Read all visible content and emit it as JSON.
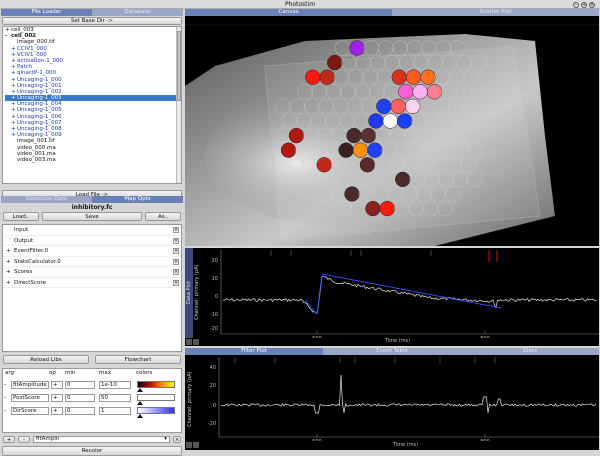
{
  "window": {
    "title": "Photostim"
  },
  "left": {
    "tabs": [
      "File Loader",
      "Database"
    ],
    "set_base_dir": "Set Base Dir ->",
    "tree": [
      {
        "label": "cell_003",
        "indent": 0,
        "prefix": "+"
      },
      {
        "label": "cell_002",
        "indent": 0,
        "prefix": "-",
        "bold": true
      },
      {
        "label": "image_000.tif",
        "indent": 1,
        "prefix": ""
      },
      {
        "label": "CCIV1_000",
        "indent": 1,
        "prefix": "+",
        "blue": true
      },
      {
        "label": "VCIV1_000",
        "indent": 1,
        "prefix": "+",
        "blue": true
      },
      {
        "label": "activation-1_000",
        "indent": 1,
        "prefix": "+",
        "blue": true
      },
      {
        "label": "Patch",
        "indent": 1,
        "prefix": "+",
        "blue": true
      },
      {
        "label": "qinactP-1_000",
        "indent": 1,
        "prefix": "+",
        "blue": true
      },
      {
        "label": "Uncaging-1_000",
        "indent": 1,
        "prefix": "+",
        "blue": true
      },
      {
        "label": "Uncaging-1_001",
        "indent": 1,
        "prefix": "+",
        "blue": true
      },
      {
        "label": "Uncaging-1_002",
        "indent": 1,
        "prefix": "+",
        "blue": true
      },
      {
        "label": "Uncaging-1_003",
        "indent": 1,
        "prefix": "+",
        "selected": true
      },
      {
        "label": "Uncaging-1_004",
        "indent": 1,
        "prefix": "+",
        "blue": true
      },
      {
        "label": "Uncaging-1_005",
        "indent": 1,
        "prefix": "+",
        "blue": true
      },
      {
        "label": "Uncaging-1_006",
        "indent": 1,
        "prefix": "+",
        "blue": true
      },
      {
        "label": "Uncaging-1_007",
        "indent": 1,
        "prefix": "+",
        "blue": true
      },
      {
        "label": "Uncaging-1_008",
        "indent": 1,
        "prefix": "+",
        "blue": true
      },
      {
        "label": "Uncaging-1_009",
        "indent": 1,
        "prefix": "+",
        "blue": true
      },
      {
        "label": "image_001.tif",
        "indent": 1,
        "prefix": ""
      },
      {
        "label": "video_000.ma",
        "indent": 1,
        "prefix": ""
      },
      {
        "label": "video_001.ma",
        "indent": 1,
        "prefix": ""
      },
      {
        "label": "video_003.ma",
        "indent": 1,
        "prefix": ""
      }
    ],
    "load_file": "Load File ->",
    "opt_tabs": [
      "Detection Opts",
      "Map Opts"
    ],
    "flowchart_name": "inhibitory.fc",
    "load_btn": "Load..",
    "save_btn": "Save",
    "as_btn": "As..",
    "nodes": [
      {
        "label": "Input",
        "prefix": ""
      },
      {
        "label": "Output",
        "prefix": ""
      },
      {
        "label": "EventFilter.0",
        "prefix": "+"
      },
      {
        "label": "StatsCalculator.0",
        "prefix": "+"
      },
      {
        "label": "Scores",
        "prefix": "+"
      },
      {
        "label": "DirectScore",
        "prefix": "+"
      }
    ],
    "reload_libs": "Reload Libs",
    "flowchart_btn": "Flowchart",
    "color_headers": [
      "arg",
      "op",
      "min",
      "max",
      "colors"
    ],
    "color_rows": [
      {
        "arg": "fitAmplitude",
        "op": "+",
        "min": "0",
        "max": "1e-10"
      },
      {
        "arg": "PostScore",
        "op": "+",
        "min": "0",
        "max": "50"
      },
      {
        "arg": "DirScore",
        "op": "+",
        "min": "0",
        "max": "1"
      }
    ],
    "add_btn": "+",
    "remove_btn": "-",
    "new_arg_value": "fitAmpIn",
    "recolor": "Recolor"
  },
  "right": {
    "tabs": [
      "Canvas",
      "Scatter Plot"
    ],
    "trace_plot": {
      "side_label": "Data Plot",
      "ylabel": "Channel: primary (pA)",
      "xlabel": "Time (ms)",
      "yticks": [
        "20",
        "10",
        "0",
        "-10",
        "-20"
      ],
      "xticks": [
        "500",
        "800"
      ]
    },
    "bottom_tabs": [
      "Filter Plot",
      "Event Table",
      "Stats"
    ],
    "filter_plot": {
      "ylabel": "Channel: primary (pA)",
      "xlabel": "Time (ms)",
      "yticks": [
        "40",
        "20",
        "0",
        "-20"
      ],
      "xticks": [
        "500",
        "800"
      ]
    }
  },
  "colors": {
    "accent": "#6b7fb8",
    "selection": "#3a78c8"
  }
}
